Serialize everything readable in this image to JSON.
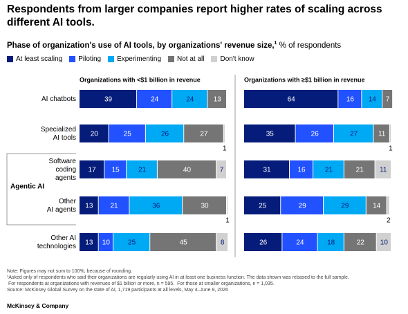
{
  "chart_data": {
    "type": "bar",
    "orientation": "horizontal",
    "stacked": true,
    "title": "Respondents from larger companies report higher rates of scaling across different AI tools.",
    "subtitle": "Phase of organization's use of AI tools, by organizations' revenue size,",
    "subtitle_footnote": "1",
    "unit": "% of respondents",
    "xlim": [
      0,
      100
    ],
    "categories": [
      "AI chatbots",
      "Specialized\nAI tools",
      "Software\ncoding\nagents",
      "Other\nAI agents",
      "Other AI\ntechnologies"
    ],
    "group_label": "Agentic AI",
    "panels": [
      {
        "title": "Organizations with  <$1 billion in revenue",
        "series": [
          {
            "name": "At least scaling",
            "color": "#051c7a",
            "values": [
              39,
              20,
              17,
              13,
              13
            ]
          },
          {
            "name": "Piloting",
            "color": "#2251ff",
            "values": [
              24,
              25,
              15,
              21,
              10
            ]
          },
          {
            "name": "Experimenting",
            "color": "#00a9f4",
            "values": [
              24,
              26,
              21,
              36,
              25
            ]
          },
          {
            "name": "Not at all",
            "color": "#757575",
            "values": [
              13,
              27,
              40,
              30,
              45
            ]
          },
          {
            "name": "Don't know",
            "color": "#d0d0d0",
            "values": [
              0,
              1,
              7,
              1,
              8
            ]
          }
        ]
      },
      {
        "title": "Organizations with  ≥$1 billion in revenue",
        "series": [
          {
            "name": "At least scaling",
            "color": "#051c7a",
            "values": [
              64,
              35,
              31,
              25,
              26
            ]
          },
          {
            "name": "Piloting",
            "color": "#2251ff",
            "values": [
              16,
              26,
              16,
              29,
              24
            ]
          },
          {
            "name": "Experimenting",
            "color": "#00a9f4",
            "values": [
              14,
              27,
              21,
              29,
              18
            ]
          },
          {
            "name": "Not at all",
            "color": "#757575",
            "values": [
              7,
              11,
              21,
              14,
              22
            ]
          },
          {
            "name": "Don't know",
            "color": "#d0d0d0",
            "values": [
              0,
              1,
              11,
              2,
              10
            ]
          }
        ]
      }
    ],
    "notes": [
      "Note: Figures may not sum to 100%, because of rounding.",
      "¹Asked only of respondents who said their organizations are regularly using AI in at least one business function. The data shown was rebased to the full sample.",
      " For respondents at organizations with revenues of $1 billion or more, n = 595.  For those at smaller organizations, n = 1,035.",
      "Source: McKinsey Global Survey on the state of AI, 1,719 participants at all levels, May 4–June 8, 2026"
    ],
    "source_brand": "McKinsey & Company"
  }
}
